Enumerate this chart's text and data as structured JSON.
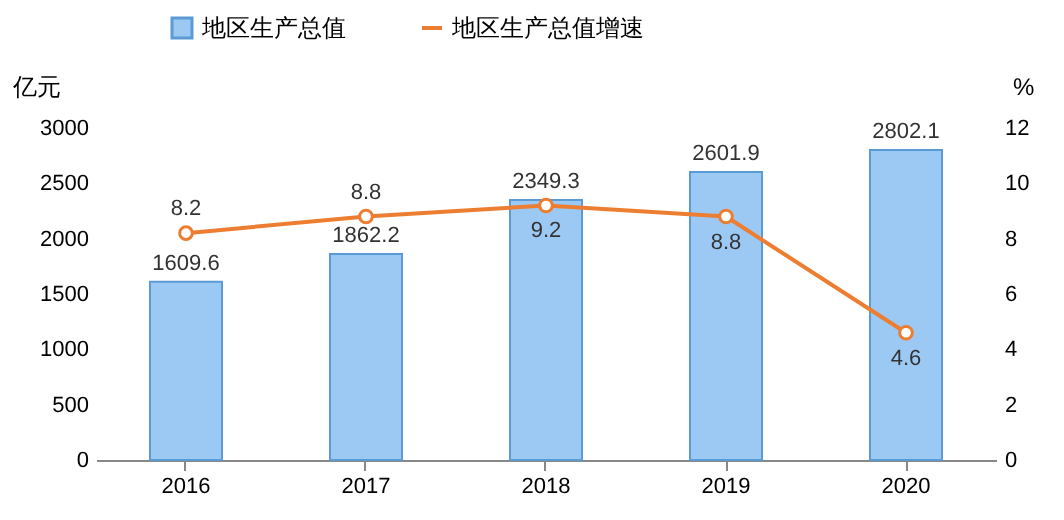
{
  "chart_data": {
    "type": "bar",
    "categories": [
      "2016",
      "2017",
      "2018",
      "2019",
      "2020"
    ],
    "series": [
      {
        "name": "地区生产总值",
        "color": "#9cc9f4",
        "values": [
          1609.6,
          1862.2,
          2349.3,
          2601.9,
          2802.1
        ]
      },
      {
        "name": "地区生产总值增速",
        "type": "line",
        "axis": "y2",
        "color": "#ed7d31",
        "values": [
          8.2,
          8.8,
          9.2,
          8.8,
          4.6
        ]
      }
    ],
    "ylabel": "亿元",
    "y2label": "%",
    "ylim": [
      0,
      3000
    ],
    "yticks": [
      0,
      500,
      1000,
      1500,
      2000,
      2500,
      3000
    ],
    "y2lim": [
      0,
      12
    ],
    "y2ticks": [
      0,
      2,
      4,
      6,
      8,
      10,
      12
    ],
    "data_labels": true,
    "legend": "top left",
    "marker": "circle"
  }
}
